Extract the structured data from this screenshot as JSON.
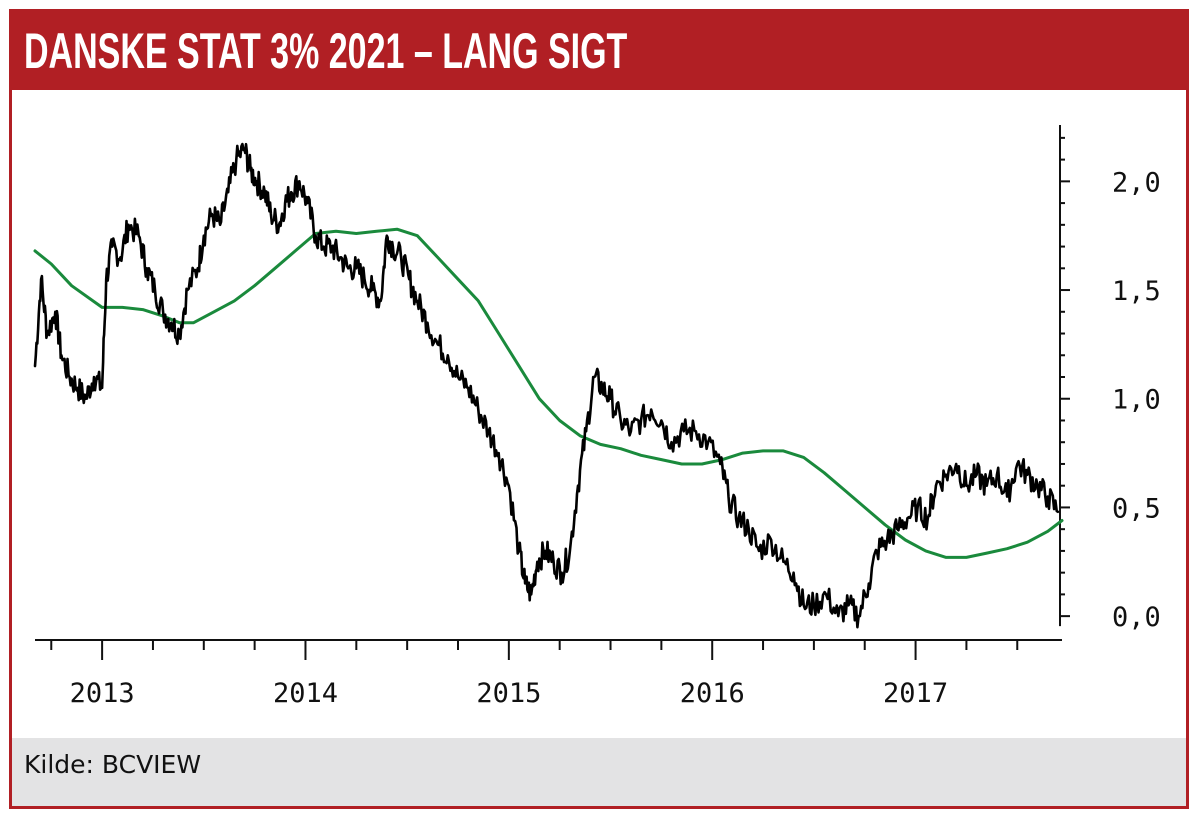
{
  "header": {
    "title": "DANSKE STAT 3% 2021 – LANG SIGT"
  },
  "footer": {
    "source": "Kilde: BCVIEW"
  },
  "colors": {
    "accent": "#b11f24",
    "footer_bg": "#e3e3e4",
    "price_line": "#000000",
    "average_line": "#1a8a3c"
  },
  "chart_data": {
    "type": "line",
    "title": "",
    "xlabel": "",
    "ylabel": "",
    "y_axis_position": "right",
    "xlim": [
      2012.67,
      2017.72
    ],
    "ylim": [
      -0.05,
      2.25
    ],
    "y_ticks": [
      0.0,
      0.5,
      1.0,
      1.5,
      2.0
    ],
    "y_tick_labels": [
      "0,0",
      "0,5",
      "1,0",
      "1,5",
      "2,0"
    ],
    "x_ticks": [
      2013,
      2014,
      2015,
      2016,
      2017
    ],
    "x_tick_labels": [
      "2013",
      "2014",
      "2015",
      "2016",
      "2017"
    ],
    "grid": false,
    "series": [
      {
        "color": "#000000",
        "x": [
          2012.67,
          2012.7,
          2012.73,
          2012.77,
          2012.8,
          2012.84,
          2012.88,
          2012.92,
          2012.96,
          2013.0,
          2013.02,
          2013.05,
          2013.09,
          2013.13,
          2013.18,
          2013.22,
          2013.26,
          2013.3,
          2013.34,
          2013.38,
          2013.42,
          2013.47,
          2013.5,
          2013.54,
          2013.58,
          2013.62,
          2013.66,
          2013.7,
          2013.73,
          2013.76,
          2013.8,
          2013.83,
          2013.87,
          2013.9,
          2013.93,
          2013.97,
          2014.01,
          2014.05,
          2014.09,
          2014.13,
          2014.17,
          2014.21,
          2014.25,
          2014.29,
          2014.33,
          2014.37,
          2014.4,
          2014.43,
          2014.47,
          2014.51,
          2014.55,
          2014.6,
          2014.65,
          2014.7,
          2014.75,
          2014.8,
          2014.85,
          2014.9,
          2014.95,
          2015.0,
          2015.05,
          2015.08,
          2015.11,
          2015.14,
          2015.18,
          2015.22,
          2015.26,
          2015.3,
          2015.34,
          2015.38,
          2015.42,
          2015.46,
          2015.5,
          2015.55,
          2015.6,
          2015.65,
          2015.7,
          2015.75,
          2015.8,
          2015.86,
          2015.92,
          2015.98,
          2016.04,
          2016.08,
          2016.13,
          2016.18,
          2016.23,
          2016.29,
          2016.35,
          2016.4,
          2016.45,
          2016.5,
          2016.56,
          2016.62,
          2016.67,
          2016.72,
          2016.77,
          2016.81,
          2016.86,
          2016.91,
          2016.96,
          2017.01,
          2017.06,
          2017.1,
          2017.15,
          2017.2,
          2017.25,
          2017.3,
          2017.35,
          2017.4,
          2017.45,
          2017.5,
          2017.55,
          2017.6,
          2017.65,
          2017.7
        ],
        "y": [
          1.15,
          1.55,
          1.3,
          1.4,
          1.2,
          1.1,
          1.05,
          1.0,
          1.1,
          1.05,
          1.55,
          1.7,
          1.65,
          1.8,
          1.75,
          1.6,
          1.5,
          1.4,
          1.35,
          1.3,
          1.5,
          1.6,
          1.75,
          1.85,
          1.8,
          1.95,
          2.1,
          2.15,
          2.05,
          2.0,
          1.95,
          1.85,
          1.8,
          1.9,
          1.95,
          2.0,
          1.9,
          1.75,
          1.7,
          1.7,
          1.65,
          1.6,
          1.6,
          1.55,
          1.5,
          1.45,
          1.75,
          1.7,
          1.65,
          1.55,
          1.45,
          1.35,
          1.25,
          1.2,
          1.1,
          1.05,
          0.95,
          0.85,
          0.75,
          0.6,
          0.3,
          0.15,
          0.1,
          0.25,
          0.3,
          0.25,
          0.2,
          0.3,
          0.6,
          0.85,
          1.1,
          1.05,
          1.0,
          0.9,
          0.85,
          0.9,
          0.95,
          0.9,
          0.8,
          0.85,
          0.85,
          0.8,
          0.7,
          0.55,
          0.45,
          0.4,
          0.3,
          0.35,
          0.25,
          0.2,
          0.05,
          0.05,
          0.1,
          0.0,
          0.05,
          0.0,
          0.15,
          0.3,
          0.35,
          0.4,
          0.45,
          0.5,
          0.45,
          0.6,
          0.65,
          0.7,
          0.6,
          0.65,
          0.6,
          0.65,
          0.55,
          0.7,
          0.65,
          0.6,
          0.55,
          0.48
        ]
      },
      {
        "color": "#1a8a3c",
        "x": [
          2012.67,
          2012.75,
          2012.85,
          2013.0,
          2013.1,
          2013.2,
          2013.3,
          2013.38,
          2013.45,
          2013.55,
          2013.65,
          2013.75,
          2013.85,
          2013.95,
          2014.05,
          2014.15,
          2014.25,
          2014.35,
          2014.45,
          2014.55,
          2014.65,
          2014.75,
          2014.85,
          2014.95,
          2015.05,
          2015.15,
          2015.25,
          2015.35,
          2015.45,
          2015.55,
          2015.65,
          2015.75,
          2015.85,
          2015.95,
          2016.05,
          2016.15,
          2016.25,
          2016.35,
          2016.45,
          2016.55,
          2016.65,
          2016.75,
          2016.85,
          2016.95,
          2017.05,
          2017.15,
          2017.25,
          2017.35,
          2017.45,
          2017.55,
          2017.65,
          2017.72
        ],
        "y": [
          1.68,
          1.62,
          1.52,
          1.42,
          1.42,
          1.41,
          1.38,
          1.35,
          1.35,
          1.4,
          1.45,
          1.52,
          1.6,
          1.68,
          1.76,
          1.77,
          1.76,
          1.77,
          1.78,
          1.75,
          1.65,
          1.55,
          1.45,
          1.3,
          1.15,
          1.0,
          0.9,
          0.83,
          0.79,
          0.77,
          0.74,
          0.72,
          0.7,
          0.7,
          0.72,
          0.75,
          0.76,
          0.76,
          0.73,
          0.66,
          0.58,
          0.5,
          0.42,
          0.35,
          0.3,
          0.27,
          0.27,
          0.29,
          0.31,
          0.34,
          0.39,
          0.44
        ]
      }
    ]
  }
}
